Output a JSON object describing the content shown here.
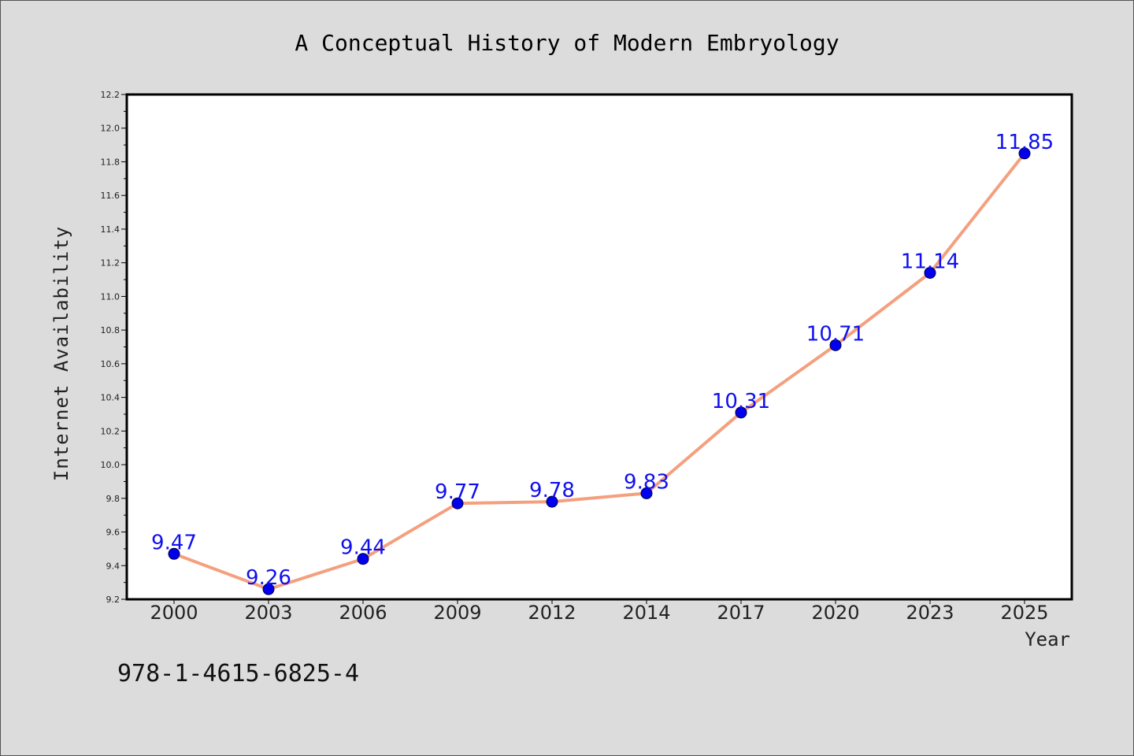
{
  "chart_data": {
    "type": "line",
    "title": "A Conceptual History of Modern Embryology",
    "xlabel": "Year",
    "ylabel": "Internet Availability",
    "categories": [
      "2000",
      "2003",
      "2006",
      "2009",
      "2012",
      "2014",
      "2017",
      "2020",
      "2023",
      "2025"
    ],
    "series": [
      {
        "values": [
          9.47,
          9.26,
          9.44,
          9.77,
          9.78,
          9.83,
          10.31,
          10.71,
          11.14,
          11.85
        ],
        "line_color": "#f4a07e",
        "marker_color": "#0000ee",
        "data_labels": [
          "9.47",
          "9.26",
          "9.44",
          "9.77",
          "9.78",
          "9.83",
          "10.31",
          "10.71",
          "11.14",
          "11.85"
        ]
      }
    ],
    "ylim": [
      9.2,
      12.2
    ],
    "yticks": [
      "9.2",
      "9.4",
      "9.6",
      "9.8",
      "10.0",
      "10.2",
      "10.4",
      "10.6",
      "10.8",
      "11.0",
      "11.2",
      "11.4",
      "11.6",
      "11.8",
      "12.0",
      "12.2"
    ],
    "grid": false,
    "legend": "none"
  },
  "footnote": "978-1-4615-6825-4",
  "colors": {
    "background": "#dcdcdc",
    "plot_background": "#ffffff"
  }
}
